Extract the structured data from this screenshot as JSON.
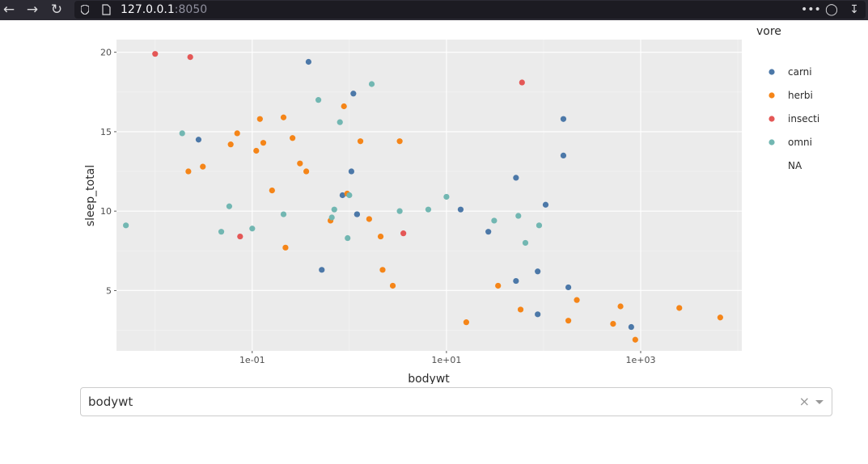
{
  "browser": {
    "url_host": "127.0.0.1",
    "url_port": ":8050"
  },
  "dropdown": {
    "value": "bodywt",
    "clear_glyph": "×"
  },
  "chart_data": {
    "type": "scatter",
    "xlabel": "bodywt",
    "ylabel": "sleep_total",
    "x_scale": "log",
    "xlim": [
      0.004,
      11000
    ],
    "ylim": [
      1.2,
      20.8
    ],
    "x_ticks": [
      {
        "value": 0.1,
        "label": "1e-01"
      },
      {
        "value": 10,
        "label": "1e+01"
      },
      {
        "value": 1000,
        "label": "1e+03"
      }
    ],
    "y_ticks": [
      {
        "value": 5,
        "label": "5"
      },
      {
        "value": 10,
        "label": "10"
      },
      {
        "value": 15,
        "label": "15"
      },
      {
        "value": 20,
        "label": "20"
      }
    ],
    "grid": true,
    "legend": {
      "title": "vore",
      "placement": "right"
    },
    "series": [
      {
        "name": "carni",
        "color": "#4c78a8",
        "points": [
          [
            0.028,
            14.5
          ],
          [
            0.38,
            19.4
          ],
          [
            1.1,
            17.4
          ],
          [
            1.05,
            12.5
          ],
          [
            0.85,
            11.0
          ],
          [
            1.2,
            9.8
          ],
          [
            0.52,
            6.3
          ],
          [
            1.2,
            9.8
          ],
          [
            14,
            10.1
          ],
          [
            27,
            8.7
          ],
          [
            52,
            12.1
          ],
          [
            52,
            5.6
          ],
          [
            87,
            3.5
          ],
          [
            87,
            6.2
          ],
          [
            105,
            10.4
          ],
          [
            160,
            13.5
          ],
          [
            160,
            15.8
          ],
          [
            180,
            5.2
          ],
          [
            800,
            2.7
          ]
        ]
      },
      {
        "name": "herbi",
        "color": "#f58518",
        "points": [
          [
            0.022,
            12.5
          ],
          [
            0.031,
            12.8
          ],
          [
            0.06,
            14.2
          ],
          [
            0.07,
            14.9
          ],
          [
            0.11,
            13.8
          ],
          [
            0.12,
            15.8
          ],
          [
            0.13,
            14.3
          ],
          [
            0.16,
            11.3
          ],
          [
            0.21,
            15.9
          ],
          [
            0.22,
            7.7
          ],
          [
            0.26,
            14.6
          ],
          [
            0.31,
            13.0
          ],
          [
            0.36,
            12.5
          ],
          [
            0.64,
            9.4
          ],
          [
            0.88,
            16.6
          ],
          [
            0.95,
            11.1
          ],
          [
            1.3,
            14.4
          ],
          [
            1.6,
            9.5
          ],
          [
            2.1,
            8.4
          ],
          [
            2.2,
            6.3
          ],
          [
            2.8,
            5.3
          ],
          [
            3.3,
            14.4
          ],
          [
            16,
            3.0
          ],
          [
            34,
            5.3
          ],
          [
            58,
            3.8
          ],
          [
            180,
            3.1
          ],
          [
            220,
            4.4
          ],
          [
            520,
            2.9
          ],
          [
            620,
            4.0
          ],
          [
            880,
            1.9
          ],
          [
            2500,
            3.9
          ],
          [
            6600,
            3.3
          ]
        ]
      },
      {
        "name": "insecti",
        "color": "#e45756",
        "points": [
          [
            0.01,
            19.9
          ],
          [
            0.023,
            19.7
          ],
          [
            0.075,
            8.4
          ],
          [
            3.6,
            8.6
          ],
          [
            60,
            18.1
          ]
        ]
      },
      {
        "name": "omni",
        "color": "#72b7b2",
        "points": [
          [
            0.005,
            9.1
          ],
          [
            0.019,
            14.9
          ],
          [
            0.048,
            8.7
          ],
          [
            0.058,
            10.3
          ],
          [
            0.1,
            8.9
          ],
          [
            0.21,
            9.8
          ],
          [
            0.48,
            17.0
          ],
          [
            0.66,
            9.6
          ],
          [
            0.7,
            10.1
          ],
          [
            0.8,
            15.6
          ],
          [
            0.96,
            8.3
          ],
          [
            1.0,
            11.0
          ],
          [
            1.7,
            18.0
          ],
          [
            3.3,
            10.0
          ],
          [
            6.5,
            10.1
          ],
          [
            10,
            10.9
          ],
          [
            31,
            9.4
          ],
          [
            55,
            9.7
          ],
          [
            65,
            8.0
          ],
          [
            90,
            9.1
          ]
        ]
      },
      {
        "name": "NA",
        "color": "#ffffff",
        "points": []
      }
    ]
  }
}
